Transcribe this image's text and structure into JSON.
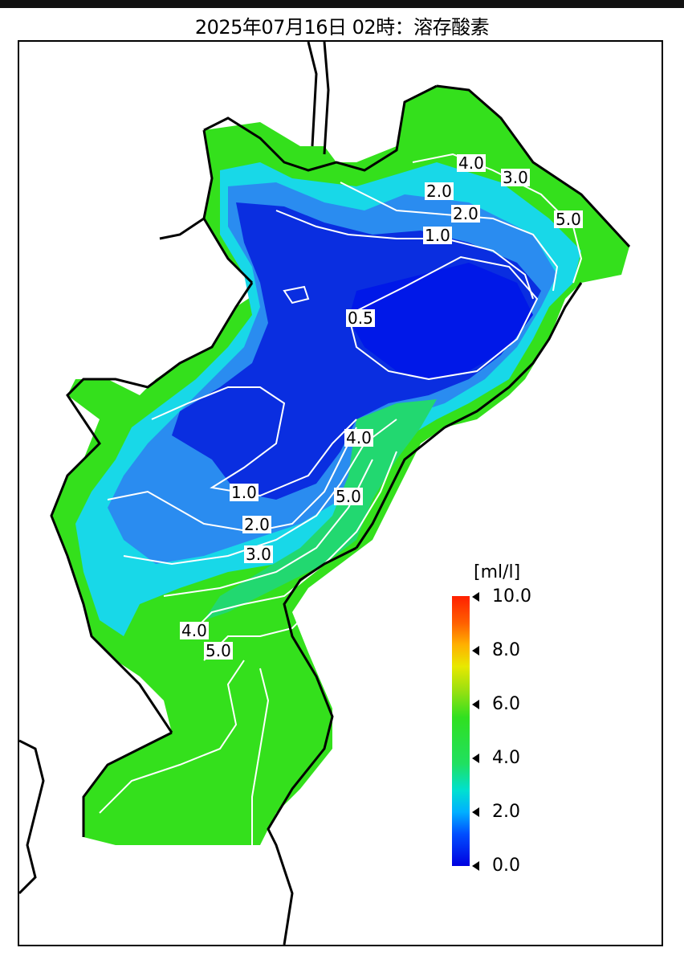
{
  "title": "2025年07月16日 02時：溶存酸素",
  "legend": {
    "unit": "[ml/l]",
    "ticks": [
      "10.0",
      "8.0",
      "6.0",
      "4.0",
      "2.0",
      "0.0"
    ],
    "colors": {
      "low": "#0000e0",
      "mid": "#30e020",
      "high": "#ff2000"
    }
  },
  "contour_labels": [
    "4.0",
    "3.0",
    "2.0",
    "2.0",
    "1.0",
    "5.0",
    "0.5",
    "4.0",
    "5.0",
    "1.0",
    "2.0",
    "3.0",
    "4.0",
    "5.0"
  ]
}
